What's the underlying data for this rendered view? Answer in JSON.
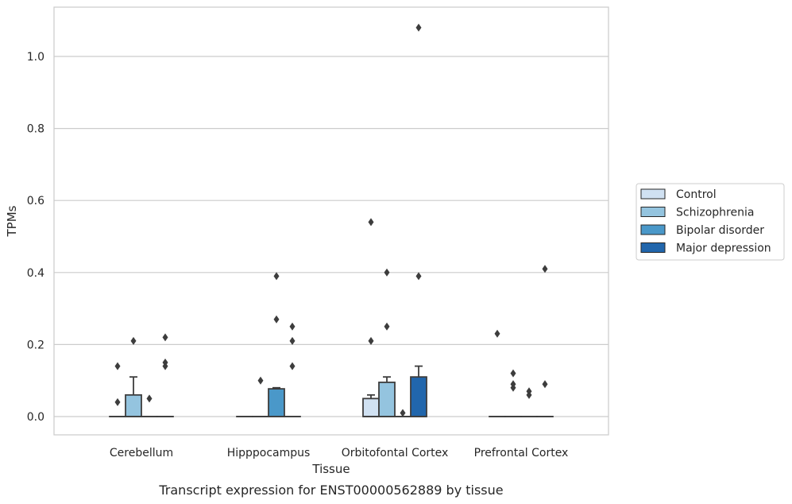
{
  "chart_data": {
    "type": "box",
    "title": "",
    "caption": "Transcript expression for ENST00000562889 by tissue",
    "xlabel": "Tissue",
    "ylabel": "TPMs",
    "ylim": [
      -0.05,
      1.14
    ],
    "yticks": [
      "0.0",
      "0.2",
      "0.4",
      "0.6",
      "0.8",
      "1.0"
    ],
    "ytick_values": [
      0.0,
      0.2,
      0.4,
      0.6,
      0.8,
      1.0
    ],
    "grid": true,
    "legend_position": "right",
    "categories": [
      "Cerebellum",
      "Hipppocampus",
      "Orbitofontal Cortex",
      "Prefrontal Cortex"
    ],
    "series": [
      {
        "name": "Control",
        "color": "#d0e1f2",
        "boxes": [
          {
            "q1": 0,
            "median": 0,
            "q3": 0,
            "whislo": 0,
            "whishi": 0,
            "fliers": [
              0.14,
              0.04
            ]
          },
          {
            "q1": 0,
            "median": 0,
            "q3": 0,
            "whislo": 0,
            "whishi": 0,
            "fliers": []
          },
          {
            "q1": 0,
            "median": 0,
            "q3": 0.05,
            "whislo": 0,
            "whishi": 0.06,
            "fliers": [
              0.54,
              0.21
            ]
          },
          {
            "q1": 0,
            "median": 0,
            "q3": 0,
            "whislo": 0,
            "whishi": 0,
            "fliers": [
              0.23
            ]
          }
        ]
      },
      {
        "name": "Schizophrenia",
        "color": "#94c4df",
        "boxes": [
          {
            "q1": 0,
            "median": 0,
            "q3": 0.06,
            "whislo": 0,
            "whishi": 0.11,
            "fliers": [
              0.21
            ]
          },
          {
            "q1": 0,
            "median": 0,
            "q3": 0,
            "whislo": 0,
            "whishi": 0,
            "fliers": [
              0.1
            ]
          },
          {
            "q1": 0,
            "median": 0,
            "q3": 0.095,
            "whislo": 0,
            "whishi": 0.11,
            "fliers": [
              0.4,
              0.25
            ]
          },
          {
            "q1": 0,
            "median": 0,
            "q3": 0,
            "whislo": 0,
            "whishi": 0,
            "fliers": [
              0.12,
              0.09,
              0.08
            ]
          }
        ]
      },
      {
        "name": "Bipolar disorder",
        "color": "#4a98c9",
        "boxes": [
          {
            "q1": 0,
            "median": 0,
            "q3": 0,
            "whislo": 0,
            "whishi": 0,
            "fliers": [
              0.05
            ]
          },
          {
            "q1": 0,
            "median": 0,
            "q3": 0.077,
            "whislo": 0,
            "whishi": 0.08,
            "fliers": [
              0.39,
              0.27
            ]
          },
          {
            "q1": 0,
            "median": 0,
            "q3": 0,
            "whislo": 0,
            "whishi": 0,
            "fliers": [
              0.01
            ]
          },
          {
            "q1": 0,
            "median": 0,
            "q3": 0,
            "whislo": 0,
            "whishi": 0,
            "fliers": [
              0.07,
              0.06
            ]
          }
        ]
      },
      {
        "name": "Major depression",
        "color": "#2166ac",
        "boxes": [
          {
            "q1": 0,
            "median": 0,
            "q3": 0,
            "whislo": 0,
            "whishi": 0,
            "fliers": [
              0.22,
              0.15,
              0.14
            ]
          },
          {
            "q1": 0,
            "median": 0,
            "q3": 0,
            "whislo": 0,
            "whishi": 0,
            "fliers": [
              0.25,
              0.21,
              0.14
            ]
          },
          {
            "q1": 0,
            "median": 0,
            "q3": 0.11,
            "whislo": 0,
            "whishi": 0.14,
            "fliers": [
              1.08,
              0.39
            ]
          },
          {
            "q1": 0,
            "median": 0,
            "q3": 0,
            "whislo": 0,
            "whishi": 0,
            "fliers": [
              0.41,
              0.09
            ]
          }
        ]
      }
    ]
  }
}
